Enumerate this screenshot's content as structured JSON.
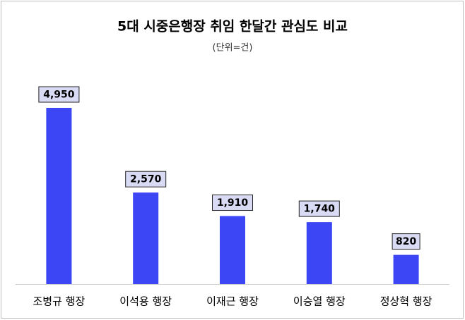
{
  "chart_data": {
    "type": "bar",
    "title": "5대 시중은행장 취임 한달간 관심도 비교",
    "subtitle": "(단위=건)",
    "categories": [
      "조병규 행장",
      "이석용 행장",
      "이재근 행장",
      "이승열 행장",
      "정상혁 행장"
    ],
    "values": [
      4950,
      2570,
      1910,
      1740,
      820
    ],
    "value_labels": [
      "4,950",
      "2,570",
      "1,910",
      "1,740",
      "820"
    ],
    "color": "#3c46f5"
  }
}
